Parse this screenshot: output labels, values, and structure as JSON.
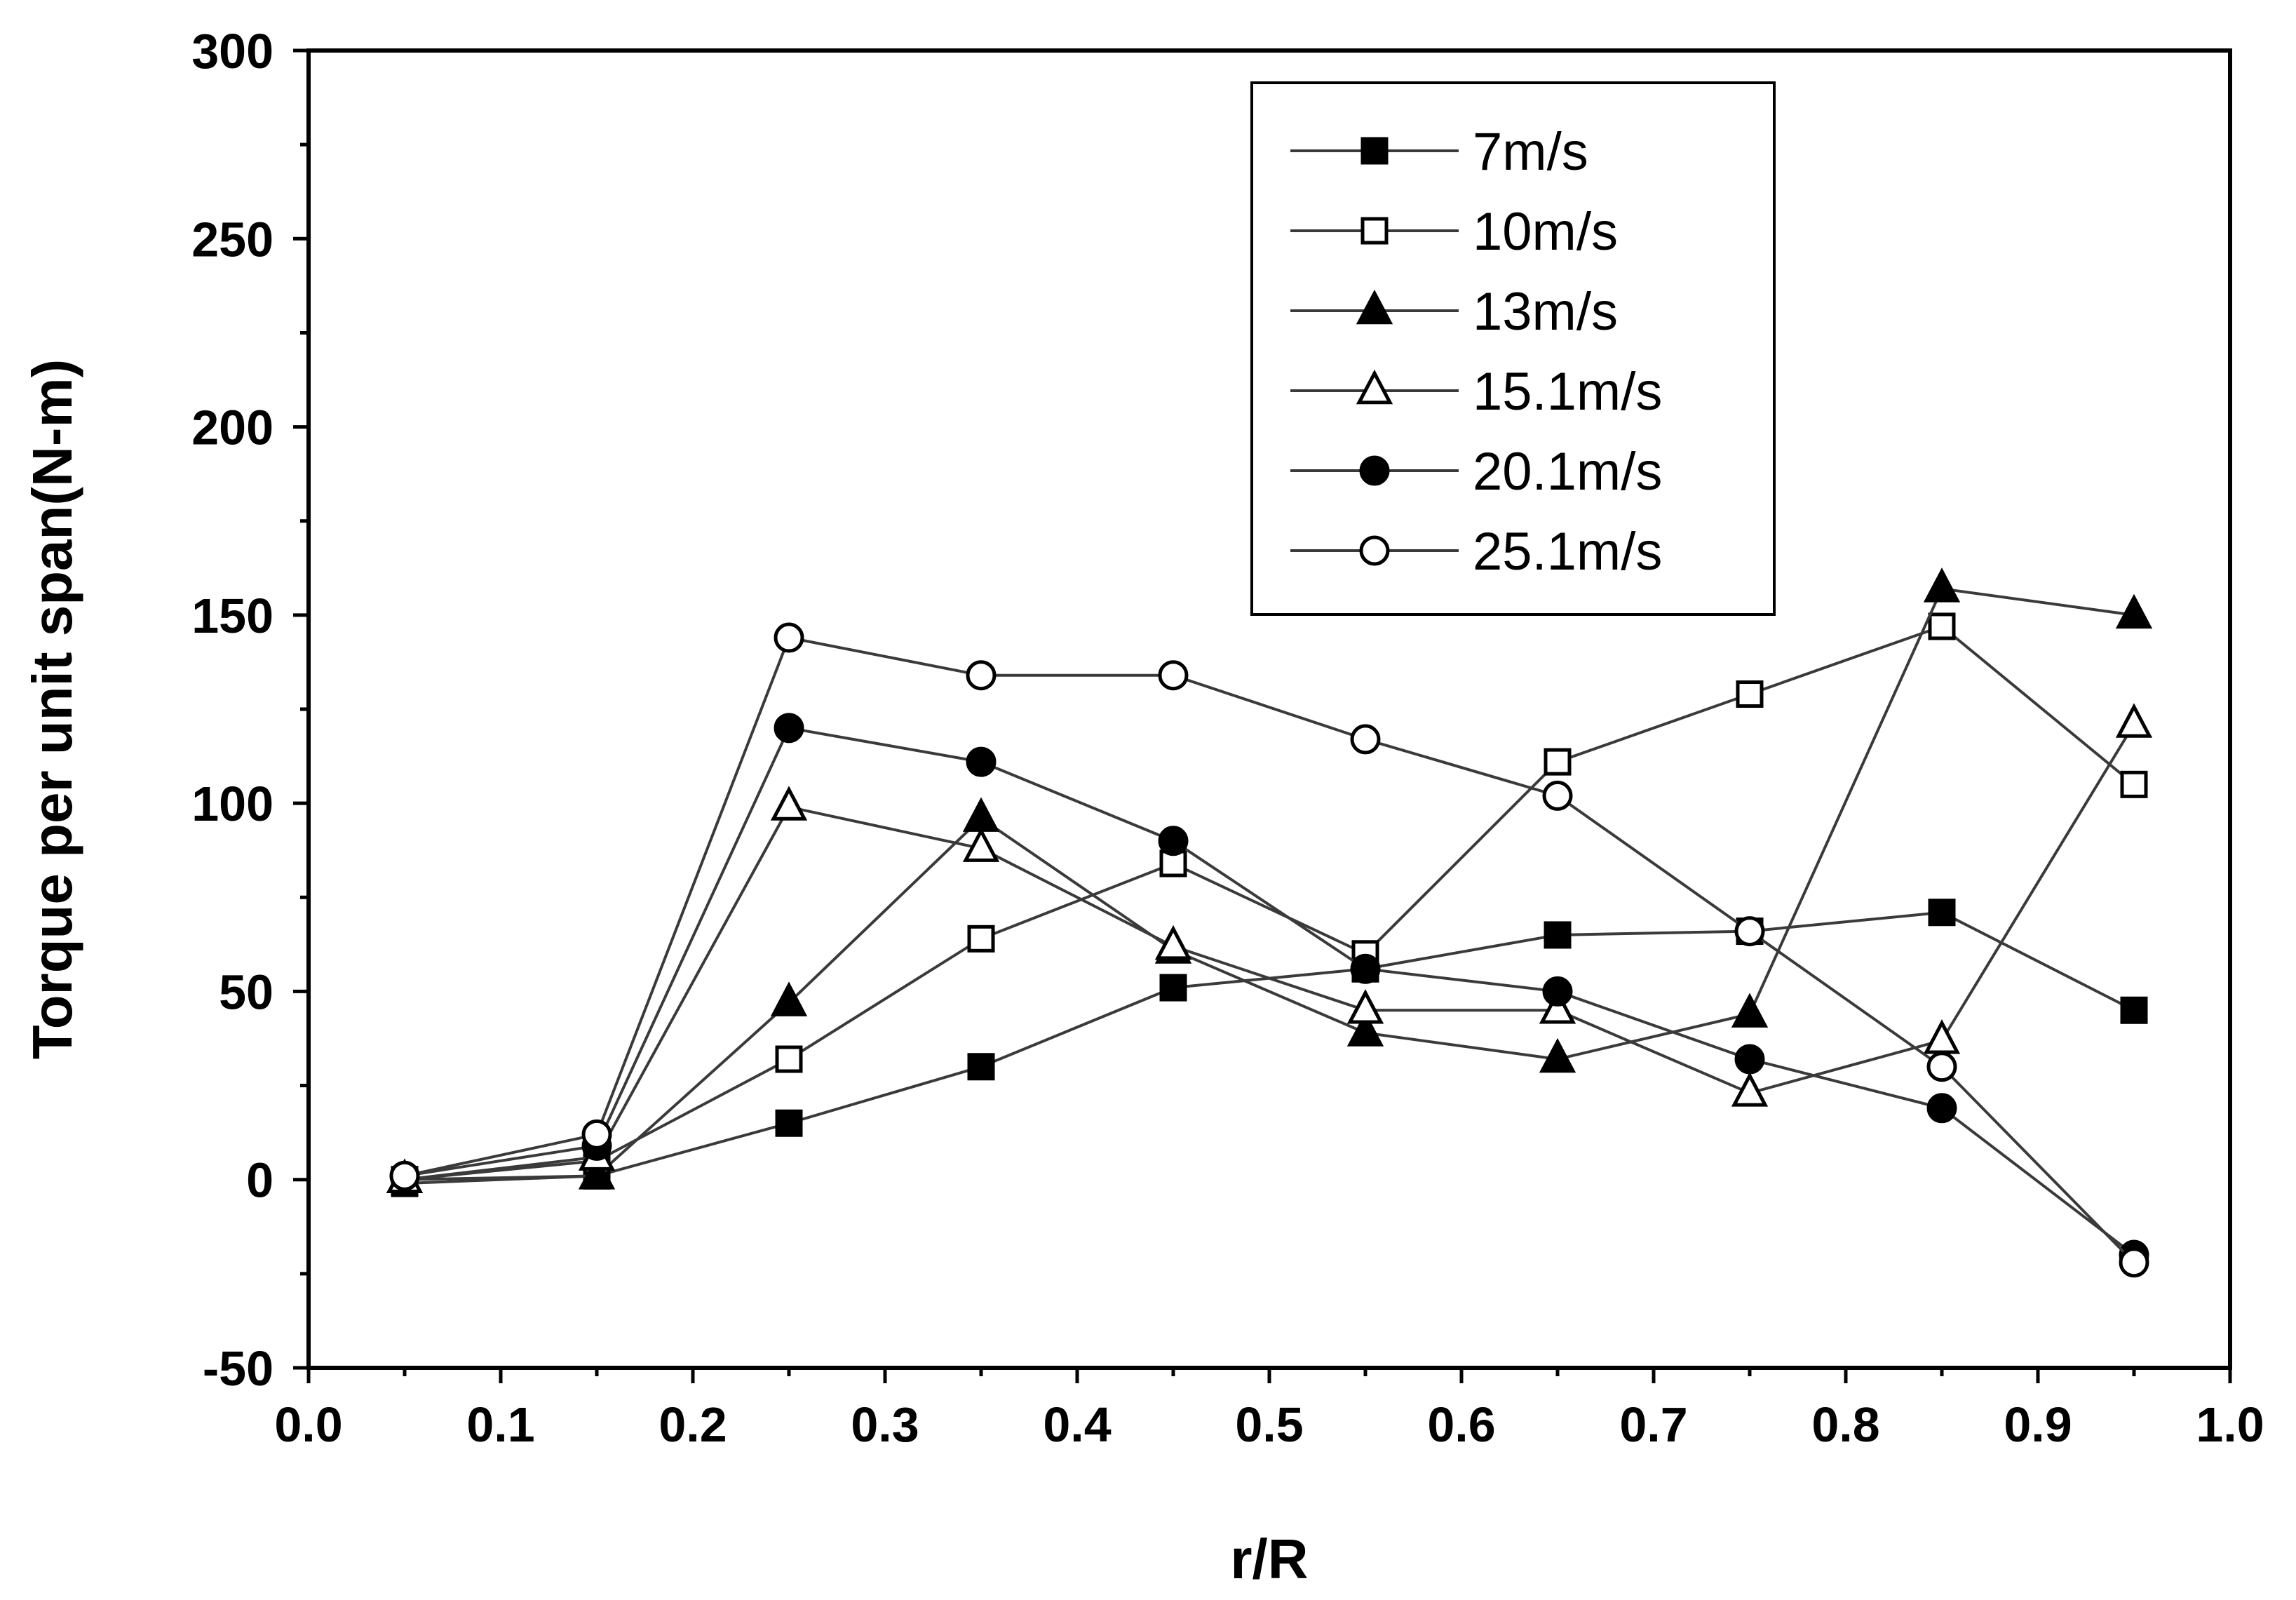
{
  "chart_data": {
    "type": "line",
    "title": "",
    "xlabel": "r/R",
    "ylabel": "Torque per unit span(N-m)",
    "xlim": [
      0.0,
      1.0
    ],
    "ylim": [
      -50,
      300
    ],
    "x_ticks": [
      0.0,
      0.1,
      0.2,
      0.3,
      0.4,
      0.5,
      0.6,
      0.7,
      0.8,
      0.9,
      1.0
    ],
    "x_tick_labels": [
      "0.0",
      "0.1",
      "0.2",
      "0.3",
      "0.4",
      "0.5",
      "0.6",
      "0.7",
      "0.8",
      "0.9",
      "1.0"
    ],
    "y_ticks": [
      -50,
      0,
      50,
      100,
      150,
      200,
      250,
      300
    ],
    "y_tick_labels": [
      "-50",
      "0",
      "50",
      "100",
      "150",
      "200",
      "250",
      "300"
    ],
    "grid": false,
    "legend_position": "top-right",
    "x": [
      0.05,
      0.15,
      0.25,
      0.35,
      0.45,
      0.55,
      0.65,
      0.75,
      0.85,
      0.95
    ],
    "series": [
      {
        "name": "7m/s",
        "marker": "square",
        "filled": true,
        "values": [
          -1,
          1,
          15,
          30,
          51,
          56,
          65,
          66,
          71,
          45
        ]
      },
      {
        "name": "10m/s",
        "marker": "square",
        "filled": false,
        "values": [
          0,
          5,
          32,
          64,
          84,
          60,
          111,
          129,
          147,
          105
        ]
      },
      {
        "name": "13m/s",
        "marker": "triangle",
        "filled": true,
        "values": [
          0,
          1,
          47,
          96,
          61,
          39,
          32,
          44,
          157,
          150
        ]
      },
      {
        "name": "15.1m/s",
        "marker": "triangle",
        "filled": false,
        "values": [
          0,
          6,
          99,
          88,
          62,
          45,
          45,
          23,
          37,
          121
        ]
      },
      {
        "name": "20.1m/s",
        "marker": "circle",
        "filled": true,
        "values": [
          1,
          9,
          120,
          111,
          90,
          56,
          50,
          32,
          19,
          -20
        ]
      },
      {
        "name": "25.1m/s",
        "marker": "circle",
        "filled": false,
        "values": [
          1,
          12,
          144,
          134,
          134,
          117,
          102,
          66,
          30,
          -22
        ]
      }
    ]
  },
  "colors": {
    "line": "#3a3a3a",
    "marker": "#000000",
    "axis": "#000000",
    "background": "#ffffff"
  }
}
